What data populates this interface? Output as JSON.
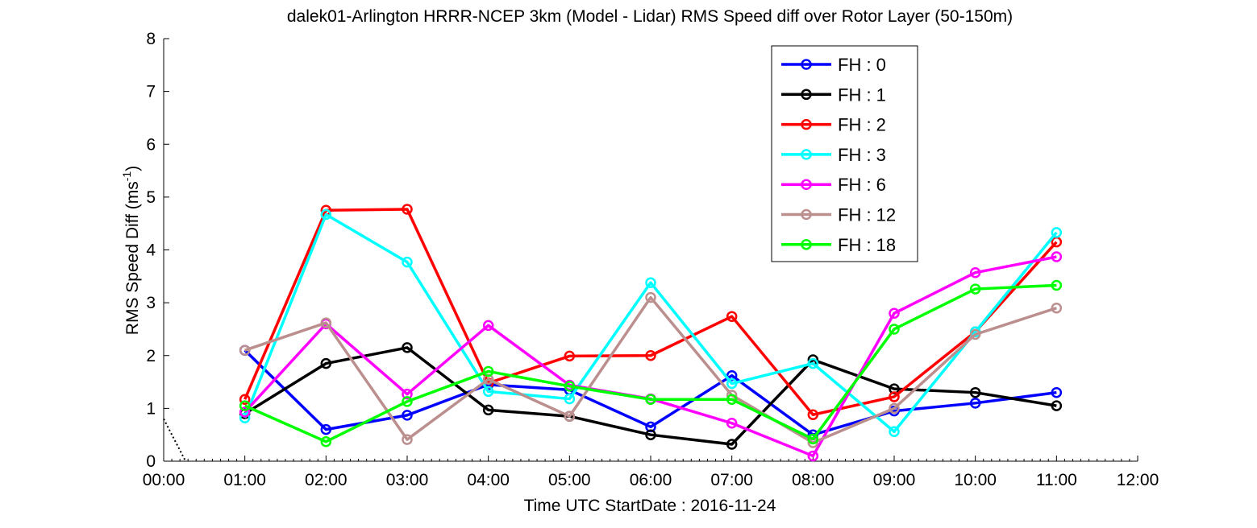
{
  "chart_data": {
    "type": "line",
    "title": "dalek01-Arlington HRRR-NCEP 3km (Model - Lidar) RMS Speed diff over Rotor Layer (50-150m)",
    "xlabel": "Time UTC    StartDate : 2016-11-24",
    "ylabel_main": "RMS Speed Diff (ms",
    "ylabel_sup": "-1",
    "ylabel_close": ")",
    "xlim": [
      0,
      12
    ],
    "ylim": [
      0,
      8
    ],
    "x_ticks": [
      "00:00",
      "01:00",
      "02:00",
      "03:00",
      "04:00",
      "05:00",
      "06:00",
      "07:00",
      "08:00",
      "09:00",
      "10:00",
      "11:00",
      "12:00"
    ],
    "y_ticks": [
      "0",
      "1",
      "2",
      "3",
      "4",
      "5",
      "6",
      "7",
      "8"
    ],
    "x": [
      1,
      2,
      3,
      4,
      5,
      6,
      7,
      8,
      9,
      10,
      11
    ],
    "legend_position": "top-right",
    "grid": false,
    "series": [
      {
        "name": "FH : 0",
        "color": "#0000ff",
        "values": [
          2.1,
          0.6,
          0.87,
          1.45,
          1.35,
          0.65,
          1.62,
          0.5,
          0.95,
          1.1,
          1.3
        ]
      },
      {
        "name": "FH : 1",
        "color": "#000000",
        "values": [
          0.9,
          1.85,
          2.15,
          0.97,
          0.85,
          0.5,
          0.32,
          1.92,
          1.37,
          1.3,
          1.05
        ]
      },
      {
        "name": "FH : 2",
        "color": "#ff0000",
        "values": [
          1.17,
          4.75,
          4.77,
          1.48,
          1.99,
          2.0,
          2.74,
          0.88,
          1.22,
          2.45,
          4.15
        ]
      },
      {
        "name": "FH : 3",
        "color": "#00ffff",
        "values": [
          0.82,
          4.67,
          3.77,
          1.32,
          1.18,
          3.38,
          1.47,
          1.85,
          0.56,
          2.45,
          4.33
        ]
      },
      {
        "name": "FH : 6",
        "color": "#ff00ff",
        "values": [
          0.93,
          2.6,
          1.27,
          2.57,
          1.44,
          1.18,
          0.72,
          0.1,
          2.8,
          3.57,
          3.87
        ]
      },
      {
        "name": "FH : 12",
        "color": "#bc8f8f",
        "values": [
          2.1,
          2.62,
          0.41,
          1.55,
          0.85,
          3.1,
          1.25,
          0.35,
          1.0,
          2.4,
          2.9
        ]
      },
      {
        "name": "FH : 18",
        "color": "#00ff00",
        "values": [
          1.05,
          0.37,
          1.13,
          1.7,
          1.42,
          1.17,
          1.17,
          0.42,
          2.5,
          3.26,
          3.33
        ]
      }
    ],
    "guide_line": {
      "color": "#000000",
      "style": "dotted",
      "x": [
        0,
        0.27
      ],
      "y": [
        0.8,
        0
      ]
    }
  }
}
